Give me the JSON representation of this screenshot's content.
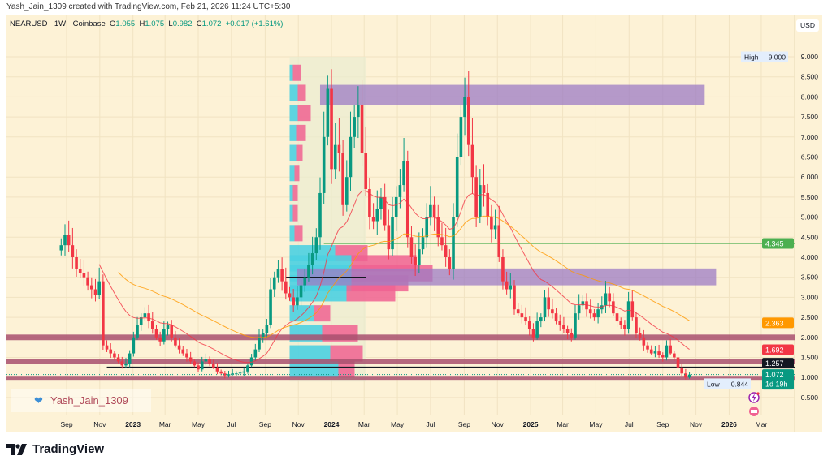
{
  "credit": "Yash_Jain_1309 created with TradingView.com, Feb 21, 2026 11:24 UTC+5:30",
  "legend": {
    "symbol": "NEARUSD · 1W · Coinbase",
    "o_label": "O",
    "o": "1.055",
    "h_label": "H",
    "h": "1.075",
    "l_label": "L",
    "l": "0.982",
    "c_label": "C",
    "c": "1.072",
    "change": "+0.017 (+1.61%)"
  },
  "currency": "USD",
  "watermark": "Yash_Jain_1309",
  "brand": "TradingView",
  "colors": {
    "background": "#fdf2d6",
    "up": "#089981",
    "down": "#f23645",
    "zone_purple": "#9c7bc4",
    "zone_maroon": "#a8506e",
    "green_line": "#4caf50",
    "ema_fast": "#f23645",
    "ema_slow": "#ff9800",
    "profile_up": "#4dd0e1",
    "profile_down": "#f06292"
  },
  "chart_data": {
    "type": "candlestick",
    "symbol": "NEARUSD",
    "interval": "1W",
    "first_week": "2022-08-22",
    "closes": [
      4.3,
      4.55,
      4.3,
      4.0,
      3.7,
      3.6,
      3.5,
      3.3,
      3.2,
      3.05,
      3.4,
      1.8,
      1.7,
      1.6,
      1.5,
      1.4,
      1.3,
      1.35,
      1.6,
      2.0,
      2.3,
      2.5,
      2.6,
      2.4,
      2.2,
      2.0,
      1.9,
      2.2,
      2.3,
      2.0,
      1.8,
      1.7,
      1.6,
      1.5,
      1.4,
      1.3,
      1.2,
      1.4,
      1.45,
      1.35,
      1.25,
      1.15,
      1.1,
      1.05,
      1.08,
      1.1,
      1.1,
      1.12,
      1.15,
      1.3,
      1.5,
      1.7,
      2.0,
      2.1,
      2.3,
      3.2,
      3.5,
      3.7,
      3.4,
      3.1,
      3.0,
      2.8,
      3.0,
      3.3,
      3.5,
      3.8,
      4.1,
      4.5,
      5.6,
      7.0,
      8.2,
      6.2,
      6.8,
      6.6,
      5.3,
      6.0,
      7.0,
      7.5,
      7.8,
      6.6,
      5.7,
      5.0,
      4.9,
      5.2,
      5.5,
      4.8,
      4.2,
      5.0,
      5.5,
      5.8,
      6.4,
      4.5,
      4.0,
      3.8,
      4.2,
      4.5,
      5.0,
      5.3,
      5.0,
      4.5,
      4.3,
      4.0,
      3.7,
      5.0,
      6.5,
      7.5,
      8.0,
      6.8,
      6.0,
      5.0,
      5.8,
      5.6,
      5.0,
      4.7,
      4.8,
      4.0,
      3.4,
      3.2,
      3.3,
      2.7,
      2.6,
      2.5,
      2.4,
      2.2,
      2.0,
      2.4,
      2.5,
      3.0,
      2.7,
      2.6,
      2.4,
      2.3,
      2.2,
      2.1,
      2.0,
      2.6,
      2.8,
      2.9,
      2.7,
      2.6,
      2.5,
      2.7,
      2.8,
      3.1,
      2.9,
      2.6,
      2.4,
      2.3,
      2.2,
      2.9,
      2.5,
      2.1,
      2.0,
      1.8,
      1.7,
      1.6,
      1.65,
      1.55,
      1.5,
      1.8,
      1.6,
      1.5,
      1.25,
      1.1,
      1.0,
      1.072
    ],
    "x_ticks": [
      {
        "label": "Sep",
        "date": "2022-09-01"
      },
      {
        "label": "Nov",
        "date": "2022-11-01"
      },
      {
        "label": "2023",
        "date": "2023-01-01",
        "bold": true
      },
      {
        "label": "Mar",
        "date": "2023-03-01"
      },
      {
        "label": "May",
        "date": "2023-05-01"
      },
      {
        "label": "Jul",
        "date": "2023-07-01"
      },
      {
        "label": "Sep",
        "date": "2023-09-01"
      },
      {
        "label": "Nov",
        "date": "2023-11-01"
      },
      {
        "label": "2024",
        "date": "2024-01-01",
        "bold": true
      },
      {
        "label": "Mar",
        "date": "2024-03-01"
      },
      {
        "label": "May",
        "date": "2024-05-01"
      },
      {
        "label": "Jul",
        "date": "2024-07-01"
      },
      {
        "label": "Sep",
        "date": "2024-09-01"
      },
      {
        "label": "Nov",
        "date": "2024-11-01"
      },
      {
        "label": "2025",
        "date": "2025-01-01",
        "bold": true
      },
      {
        "label": "Mar",
        "date": "2025-03-01"
      },
      {
        "label": "May",
        "date": "2025-05-01"
      },
      {
        "label": "Jul",
        "date": "2025-07-01"
      },
      {
        "label": "Sep",
        "date": "2025-09-01"
      },
      {
        "label": "Nov",
        "date": "2025-11-01"
      },
      {
        "label": "2026",
        "date": "2026-01-01",
        "bold": true
      },
      {
        "label": "Mar",
        "date": "2026-03-01"
      }
    ],
    "y_ticks": [
      "9.000",
      "8.500",
      "8.000",
      "7.500",
      "7.000",
      "6.500",
      "6.000",
      "5.500",
      "5.000",
      "4.500",
      "4.000",
      "3.500",
      "3.000",
      "2.500",
      "2.000",
      "1.500",
      "1.000",
      "0.500"
    ],
    "ylim": [
      0.3,
      9.6
    ],
    "zones": [
      {
        "type": "box",
        "top": 8.3,
        "bottom": 7.8,
        "from": "2023-12-11",
        "to": "2025-11-17",
        "color": "purple"
      },
      {
        "type": "box",
        "top": 3.72,
        "bottom": 3.3,
        "from": "2023-10-30",
        "to": "2025-12-08",
        "color": "purple"
      },
      {
        "type": "band",
        "top": 2.07,
        "bottom": 1.93,
        "color": "maroon"
      },
      {
        "type": "band",
        "top": 1.45,
        "bottom": 1.33,
        "color": "maroon"
      },
      {
        "type": "band",
        "top": 1.02,
        "bottom": 0.94,
        "color": "maroon"
      }
    ],
    "lines": [
      {
        "price": 4.345,
        "from": "2023-12-18",
        "color": "green"
      },
      {
        "price": 3.5,
        "from": "2023-10-09",
        "to": "2024-03-04",
        "color": "black"
      },
      {
        "price": 1.257,
        "from": "2022-11-14",
        "color": "black"
      }
    ],
    "volume_profile": {
      "from": "2023-10-16",
      "to": "2024-03-04",
      "rows": [
        {
          "price": 8.6,
          "up": 0.02,
          "down": 0.05
        },
        {
          "price": 8.1,
          "up": 0.05,
          "down": 0.05
        },
        {
          "price": 7.6,
          "up": 0.05,
          "down": 0.08
        },
        {
          "price": 7.1,
          "up": 0.04,
          "down": 0.06
        },
        {
          "price": 6.6,
          "up": 0.04,
          "down": 0.04
        },
        {
          "price": 6.1,
          "up": 0.03,
          "down": 0.03
        },
        {
          "price": 5.6,
          "up": 0.02,
          "down": 0.03
        },
        {
          "price": 5.1,
          "up": 0.02,
          "down": 0.03
        },
        {
          "price": 4.6,
          "up": 0.03,
          "down": 0.05
        },
        {
          "price": 4.1,
          "up": 0.28,
          "down": 0.2
        },
        {
          "price": 3.85,
          "up": 0.38,
          "down": 0.4
        },
        {
          "price": 3.6,
          "up": 0.38,
          "down": 0.5
        },
        {
          "price": 3.35,
          "up": 0.38,
          "down": 0.35
        },
        {
          "price": 3.1,
          "up": 0.35,
          "down": 0.3
        },
        {
          "price": 2.6,
          "up": 0.15,
          "down": 0.1
        },
        {
          "price": 2.1,
          "up": 0.2,
          "down": 0.22
        },
        {
          "price": 1.6,
          "up": 0.25,
          "down": 0.2
        },
        {
          "price": 1.2,
          "up": 0.3,
          "down": 0.1
        }
      ]
    },
    "ema_periods": [
      20,
      50
    ],
    "price_labels": [
      {
        "value": "4.345",
        "color": "#4caf50",
        "price": 4.345
      },
      {
        "value": "2.363",
        "color": "#ff9800",
        "price": 2.363
      },
      {
        "value": "1.692",
        "color": "#f23645",
        "price": 1.692
      },
      {
        "value": "1.257",
        "color": "#131722",
        "price": 1.257
      },
      {
        "value": "1.072",
        "sub": "1d 19h",
        "color": "#089981",
        "price": 1.072
      }
    ],
    "high": {
      "label": "High",
      "value": "9.000",
      "price": 9.0
    },
    "low": {
      "label": "Low",
      "value": "0.844",
      "price": 0.844
    }
  }
}
